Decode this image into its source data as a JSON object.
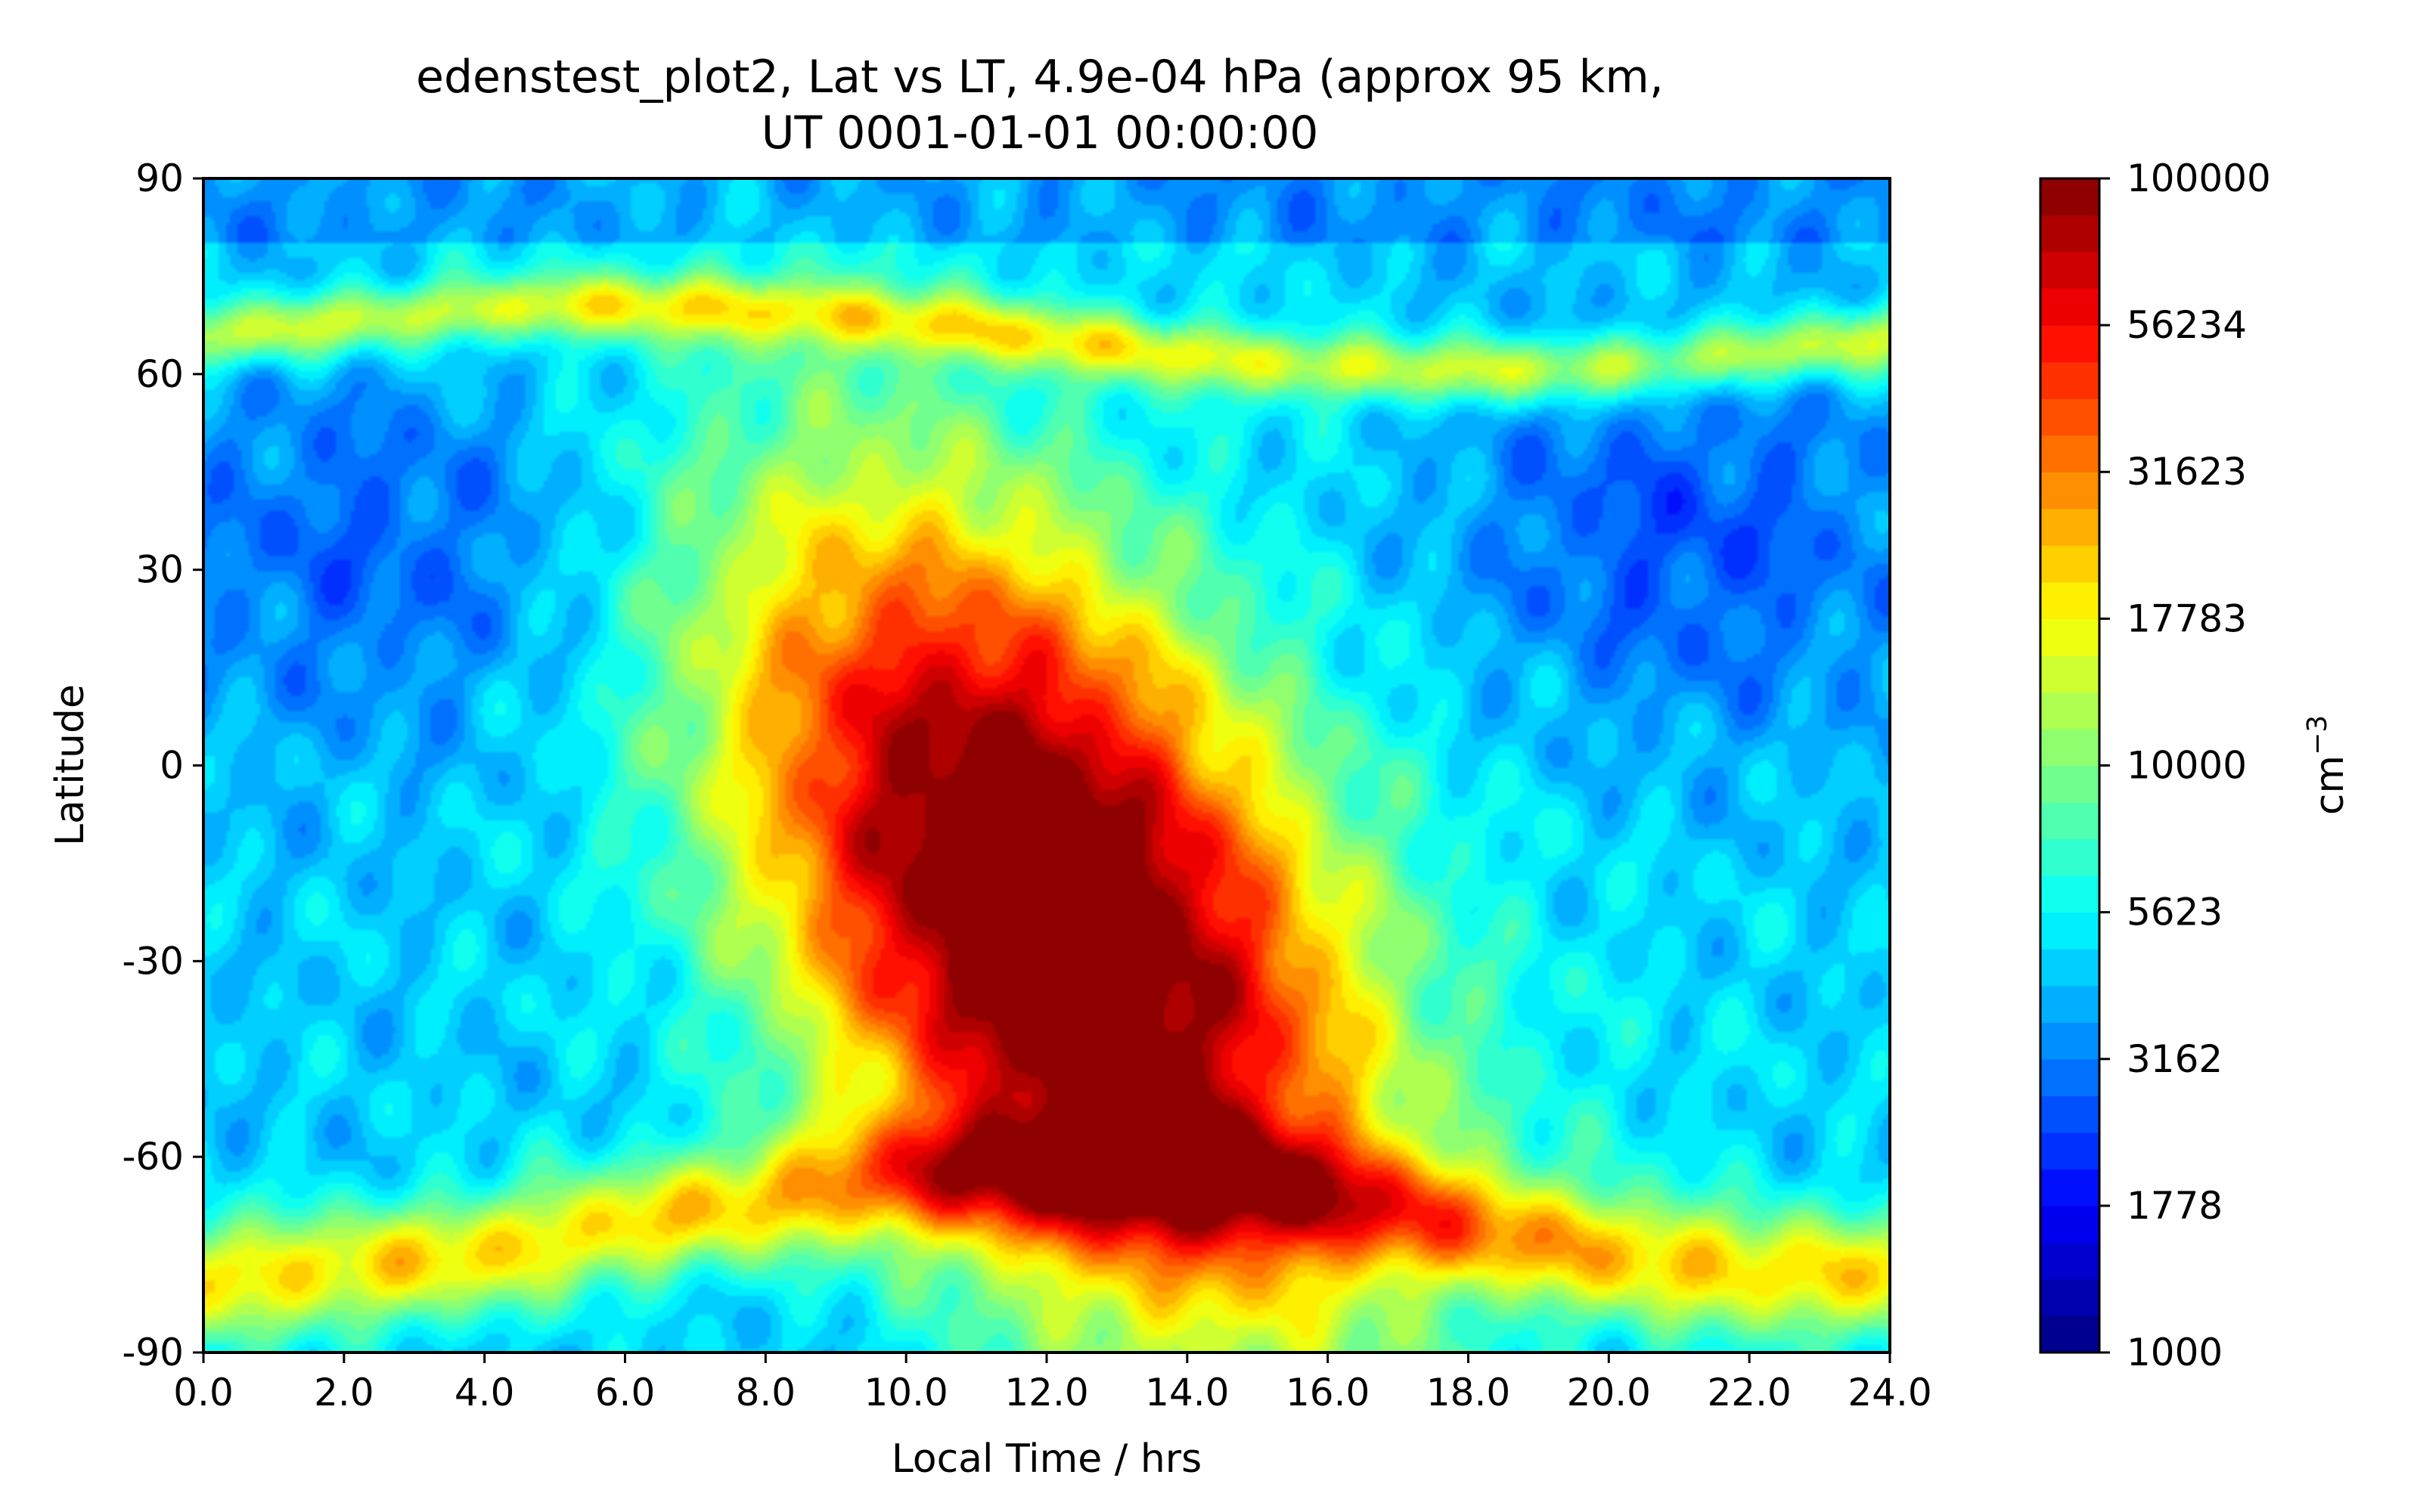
{
  "chart_data": {
    "type": "heatmap",
    "title_line1": "edenstest_plot2, Lat vs LT, 4.9e-04 hPa (approx 95 km,",
    "title_line2": "UT 0001-01-01 00:00:00",
    "xlabel": "Local Time / hrs",
    "ylabel": "Latitude",
    "xlim": [
      0,
      24
    ],
    "ylim": [
      -90,
      90
    ],
    "x_ticks": [
      0,
      2,
      4,
      6,
      8,
      10,
      12,
      14,
      16,
      18,
      20,
      22,
      24
    ],
    "x_tick_labels": [
      "0.0",
      "2.0",
      "4.0",
      "6.0",
      "8.0",
      "10.0",
      "12.0",
      "14.0",
      "16.0",
      "18.0",
      "20.0",
      "22.0",
      "24.0"
    ],
    "y_ticks": [
      90,
      60,
      30,
      0,
      -30,
      -60,
      -90
    ],
    "y_tick_labels": [
      "90",
      "60",
      "30",
      "0",
      "-30",
      "-60",
      "-90"
    ],
    "colorbar": {
      "label": "cm",
      "label_exponent": "−3",
      "scale": "log",
      "range": [
        1000,
        100000
      ],
      "ticks": [
        100000,
        56234,
        31623,
        17783,
        10000,
        5623,
        3162,
        1778,
        1000
      ],
      "tick_labels": [
        "100000",
        "56234",
        "31623",
        "17783",
        "10000",
        "5623",
        "3162",
        "1778",
        "1000"
      ],
      "levels": 32,
      "colormap": "jet"
    },
    "field_features": {
      "dayside_peak": {
        "local_time": 12,
        "latitude": -25,
        "value": 75000
      },
      "night_background": {
        "value": 4500
      },
      "north_depletion": {
        "value": 2700
      },
      "north_band": {
        "latitude_range": [
          60,
          75
        ],
        "value": 15000
      },
      "south_band": {
        "latitude_range": [
          -85,
          -60
        ],
        "value": 20000
      }
    },
    "grid": false
  }
}
